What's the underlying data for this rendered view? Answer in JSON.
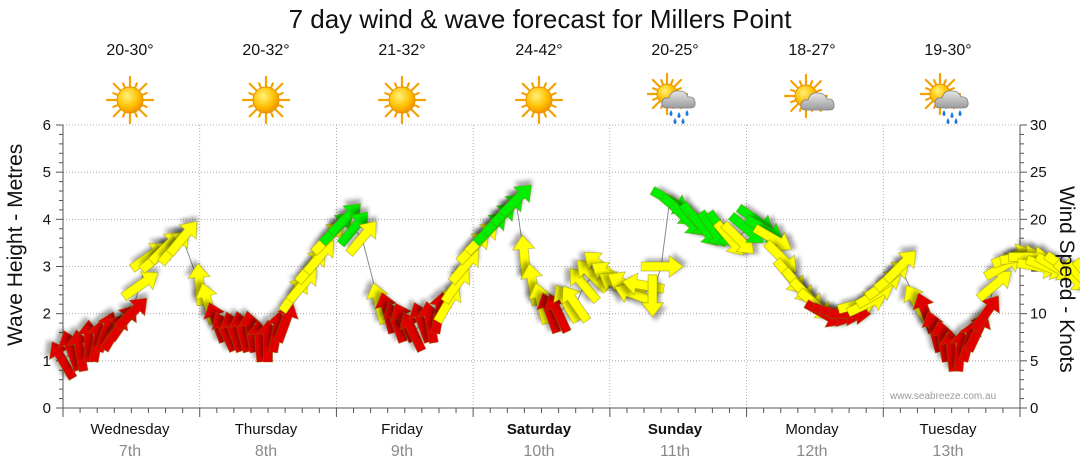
{
  "chart_data": {
    "type": "line",
    "title": "7 day wind & wave forecast for Millers Point",
    "ylabel": "Wave Height - Metres",
    "y2label": "Wind Speed - Knots",
    "ylim": [
      0,
      6
    ],
    "y2lim": [
      0,
      30
    ],
    "yticks": [
      "0",
      "1",
      "2",
      "3",
      "4",
      "5",
      "6"
    ],
    "y2ticks": [
      "0",
      "5",
      "10",
      "15",
      "20",
      "25",
      "30"
    ],
    "grid": true,
    "days": [
      {
        "day": "Wednesday",
        "date": "7th",
        "bold": false,
        "temp": "20-30°",
        "weather": "sunny"
      },
      {
        "day": "Thursday",
        "date": "8th",
        "bold": false,
        "temp": "20-32°",
        "weather": "sunny"
      },
      {
        "day": "Friday",
        "date": "9th",
        "bold": false,
        "temp": "21-32°",
        "weather": "sunny"
      },
      {
        "day": "Saturday",
        "date": "10th",
        "bold": true,
        "temp": "24-42°",
        "weather": "sunny"
      },
      {
        "day": "Sunday",
        "date": "11th",
        "bold": true,
        "temp": "20-25°",
        "weather": "showers"
      },
      {
        "day": "Monday",
        "date": "12th",
        "bold": false,
        "temp": "18-27°",
        "weather": "partly-cloudy"
      },
      {
        "day": "Tuesday",
        "date": "13th",
        "bold": false,
        "temp": "19-30°",
        "weather": "showers"
      }
    ],
    "series": [
      {
        "values": [
          [
            0.0,
            5.0,
            150
          ],
          [
            0.5,
            6.0,
            160
          ],
          [
            1.0,
            6.0,
            170
          ],
          [
            1.5,
            7.0,
            180
          ],
          [
            2.0,
            7.0,
            190
          ],
          [
            2.5,
            8.0,
            200
          ],
          [
            3.0,
            8.0,
            210
          ],
          [
            3.5,
            9.0,
            215
          ],
          [
            4.0,
            10.0,
            225
          ],
          [
            4.5,
            13.0,
            235
          ],
          [
            5.0,
            16.0,
            235
          ],
          [
            5.5,
            16.0,
            230
          ],
          [
            6.0,
            17.0,
            225
          ],
          [
            6.5,
            17.0,
            220
          ],
          [
            7.0,
            18.0,
            220
          ],
          [
            8.0,
            13.0,
            175
          ],
          [
            8.5,
            11.0,
            165
          ],
          [
            9.0,
            9.0,
            160
          ],
          [
            9.5,
            8.0,
            155
          ],
          [
            10.0,
            8.0,
            160
          ],
          [
            10.5,
            8.0,
            165
          ],
          [
            11.0,
            8.0,
            170
          ],
          [
            11.5,
            7.0,
            175
          ],
          [
            12.0,
            7.0,
            180
          ],
          [
            12.5,
            8.0,
            190
          ],
          [
            13.0,
            9.0,
            200
          ],
          [
            13.5,
            12.0,
            215
          ],
          [
            14.0,
            13.0,
            220
          ],
          [
            14.5,
            15.0,
            220
          ],
          [
            15.0,
            16.0,
            220
          ],
          [
            15.5,
            18.0,
            225
          ],
          [
            16.0,
            19.0,
            225
          ],
          [
            16.5,
            20.0,
            225
          ],
          [
            17.0,
            19.0,
            220
          ],
          [
            17.5,
            18.0,
            220
          ],
          [
            18.5,
            11.0,
            165
          ],
          [
            19.0,
            10.0,
            165
          ],
          [
            19.5,
            9.0,
            160
          ],
          [
            20.0,
            9.0,
            155
          ],
          [
            20.5,
            8.0,
            155
          ],
          [
            21.0,
            9.0,
            160
          ],
          [
            21.5,
            9.0,
            170
          ],
          [
            22.0,
            10.0,
            190
          ],
          [
            22.5,
            11.0,
            210
          ],
          [
            23.0,
            13.0,
            215
          ],
          [
            23.5,
            15.0,
            220
          ],
          [
            24.0,
            17.0,
            225
          ],
          [
            24.5,
            18.0,
            225
          ],
          [
            25.0,
            19.0,
            225
          ],
          [
            25.5,
            20.0,
            225
          ],
          [
            26.0,
            21.0,
            225
          ],
          [
            26.5,
            22.0,
            225
          ],
          [
            27.0,
            16.0,
            175
          ],
          [
            27.5,
            13.0,
            170
          ],
          [
            28.0,
            11.0,
            165
          ],
          [
            28.5,
            10.0,
            160
          ],
          [
            29.0,
            10.0,
            155
          ],
          [
            29.5,
            11.0,
            150
          ],
          [
            30.0,
            11.0,
            145
          ],
          [
            30.5,
            13.0,
            140
          ],
          [
            31.0,
            14.0,
            135
          ],
          [
            31.5,
            15.0,
            130
          ],
          [
            32.0,
            14.0,
            125
          ],
          [
            32.5,
            13.0,
            120
          ],
          [
            33.0,
            13.0,
            120
          ],
          [
            33.5,
            12.0,
            110
          ],
          [
            34.0,
            13.0,
            100
          ],
          [
            34.5,
            12.0,
            0
          ],
          [
            35.0,
            15.0,
            270
          ],
          [
            35.5,
            22.0,
            300
          ],
          [
            36.0,
            21.0,
            310
          ],
          [
            36.5,
            20.0,
            315
          ],
          [
            37.0,
            20.0,
            320
          ],
          [
            37.5,
            19.0,
            320
          ],
          [
            38.0,
            19.0,
            325
          ],
          [
            38.5,
            19.0,
            325
          ],
          [
            39.0,
            18.0,
            320
          ],
          [
            39.5,
            18.0,
            315
          ],
          [
            40.0,
            19.0,
            310
          ],
          [
            40.5,
            20.0,
            305
          ],
          [
            41.0,
            19.0,
            300
          ],
          [
            41.5,
            18.0,
            300
          ],
          [
            42.0,
            16.0,
            315
          ],
          [
            42.5,
            14.0,
            320
          ],
          [
            43.0,
            13.0,
            320
          ],
          [
            43.5,
            12.0,
            315
          ],
          [
            44.0,
            11.0,
            310
          ],
          [
            44.5,
            10.0,
            300
          ],
          [
            45.0,
            10.0,
            290
          ],
          [
            45.5,
            10.0,
            280
          ],
          [
            46.0,
            10.0,
            270
          ],
          [
            46.5,
            11.0,
            255
          ],
          [
            47.0,
            11.0,
            245
          ],
          [
            47.5,
            12.0,
            240
          ],
          [
            48.0,
            13.0,
            235
          ],
          [
            48.5,
            14.0,
            230
          ],
          [
            49.0,
            15.0,
            225
          ],
          [
            50.0,
            11.0,
            150
          ],
          [
            50.5,
            10.0,
            160
          ],
          [
            51.0,
            8.0,
            165
          ],
          [
            51.5,
            7.0,
            170
          ],
          [
            52.0,
            6.0,
            175
          ],
          [
            52.5,
            6.0,
            185
          ],
          [
            53.0,
            7.0,
            195
          ],
          [
            53.5,
            8.0,
            205
          ],
          [
            54.0,
            10.0,
            215
          ],
          [
            54.5,
            13.0,
            230
          ],
          [
            55.0,
            15.0,
            240
          ],
          [
            55.5,
            16.0,
            250
          ],
          [
            56.0,
            16.0,
            260
          ],
          [
            56.5,
            16.0,
            270
          ],
          [
            57.0,
            15.0,
            280
          ],
          [
            57.5,
            15.0,
            290
          ],
          [
            58.0,
            15.0,
            300
          ],
          [
            58.5,
            15.0,
            305
          ],
          [
            59.0,
            14.0,
            310
          ],
          [
            59.5,
            14.0,
            315
          ],
          [
            60.0,
            14.0,
            320
          ]
        ]
      }
    ],
    "x_unit": "hours (3-hourly steps) from Wednesday 00:00",
    "bands": [
      {
        "max": 10,
        "color": "#e00000"
      },
      {
        "max": 18,
        "color": "#ffff00"
      },
      {
        "max": 30,
        "color": "#00ee00"
      }
    ],
    "watermark": "www.seabreeze.com.au"
  }
}
